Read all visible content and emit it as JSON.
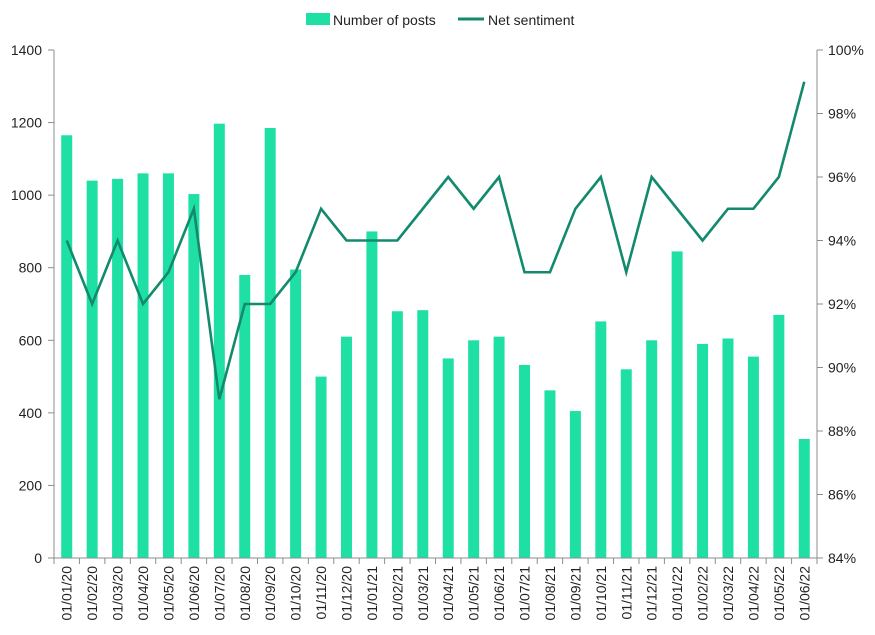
{
  "chart_data": {
    "type": "bar",
    "title": "",
    "xlabel": "",
    "ylabel": "",
    "ylim": [
      0,
      1400
    ],
    "y2lim": [
      84,
      100
    ],
    "y_ticks": [
      "0",
      "200",
      "400",
      "600",
      "800",
      "1000",
      "1200",
      "1400"
    ],
    "y2_ticks": [
      "84%",
      "86%",
      "88%",
      "90%",
      "92%",
      "94%",
      "96%",
      "98%",
      "100%"
    ],
    "grid": false,
    "legend_position": "top-center",
    "categories": [
      "01/01/20",
      "01/02/20",
      "01/03/20",
      "01/04/20",
      "01/05/20",
      "01/06/20",
      "01/07/20",
      "01/08/20",
      "01/09/20",
      "01/10/20",
      "01/11/20",
      "01/12/20",
      "01/01/21",
      "01/02/21",
      "01/03/21",
      "01/04/21",
      "01/05/21",
      "01/06/21",
      "01/07/21",
      "01/08/21",
      "01/09/21",
      "01/10/21",
      "01/11/21",
      "01/12/21",
      "01/01/22",
      "01/02/22",
      "01/03/22",
      "01/04/22",
      "01/05/22",
      "01/06/22"
    ],
    "series": [
      {
        "name": "Number of posts",
        "type": "bar",
        "axis": "left",
        "color": "#1EE0A4",
        "values": [
          1165,
          1040,
          1045,
          1060,
          1060,
          1003,
          1197,
          780,
          1185,
          795,
          500,
          610,
          900,
          680,
          683,
          550,
          600,
          610,
          532,
          462,
          405,
          652,
          520,
          600,
          845,
          590,
          605,
          555,
          670,
          328
        ]
      },
      {
        "name": "Net sentiment",
        "type": "line",
        "axis": "right",
        "unit": "%",
        "color": "#138A6E",
        "values": [
          94,
          92,
          94,
          92,
          93,
          95,
          89,
          92,
          92,
          93,
          95,
          94,
          94,
          94,
          95,
          96,
          95,
          96,
          93,
          93,
          95,
          96,
          93,
          96,
          95,
          94,
          95,
          95,
          96,
          99
        ]
      }
    ]
  }
}
